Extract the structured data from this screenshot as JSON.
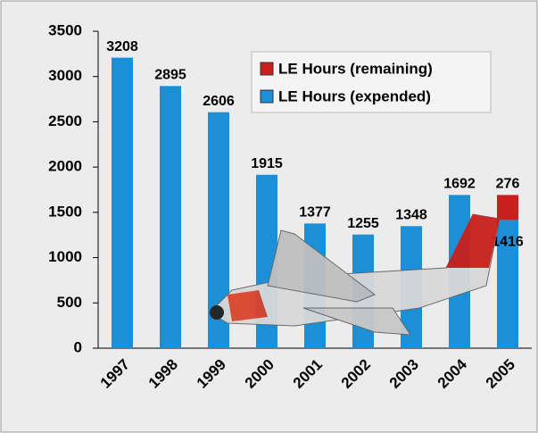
{
  "chart_data": {
    "type": "stacked_bar",
    "categories": [
      "1997",
      "1998",
      "1999",
      "2000",
      "2001",
      "2002",
      "2003",
      "2004",
      "2005"
    ],
    "series": [
      {
        "name": "LE Hours (remaining)",
        "color": "#c8201c",
        "values": [
          null,
          null,
          null,
          null,
          null,
          null,
          null,
          null,
          276
        ]
      },
      {
        "name": "LE Hours (expended)",
        "color": "#1b8fd8",
        "values": [
          3208,
          2895,
          2606,
          1915,
          1377,
          1255,
          1348,
          1692,
          1416
        ]
      }
    ],
    "ylim": [
      0,
      3500
    ],
    "yticks": [
      0,
      500,
      1000,
      1500,
      2000,
      2500,
      3000,
      3500
    ]
  }
}
